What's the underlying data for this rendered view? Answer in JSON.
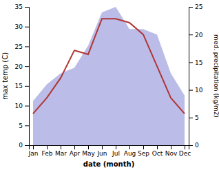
{
  "chart_data": {
    "type": "line",
    "categories": [
      "Jan",
      "Feb",
      "Mar",
      "Apr",
      "May",
      "Jun",
      "Jul",
      "Aug",
      "Sep",
      "Oct",
      "Nov",
      "Dec"
    ],
    "xlabel": "date (month)",
    "ylabel": "max temp (C)",
    "y2label": "med. precipitation (kg/m2)",
    "series": [
      {
        "type": "area",
        "axis": "y2",
        "color": "#bbbde8",
        "values": [
          8,
          11,
          13,
          14,
          18,
          24,
          25,
          21,
          21,
          20,
          13,
          9
        ]
      },
      {
        "type": "line",
        "color": "#b03535",
        "values": [
          8,
          12,
          17,
          24,
          23,
          32,
          32,
          31,
          28,
          20,
          12,
          8
        ]
      }
    ],
    "ylim": [
      0,
      35
    ],
    "yticks": [
      0,
      5,
      10,
      15,
      20,
      25,
      30,
      35
    ],
    "y2lim": [
      0,
      25
    ],
    "y2ticks": [
      0,
      5,
      10,
      15,
      20,
      25
    ]
  }
}
